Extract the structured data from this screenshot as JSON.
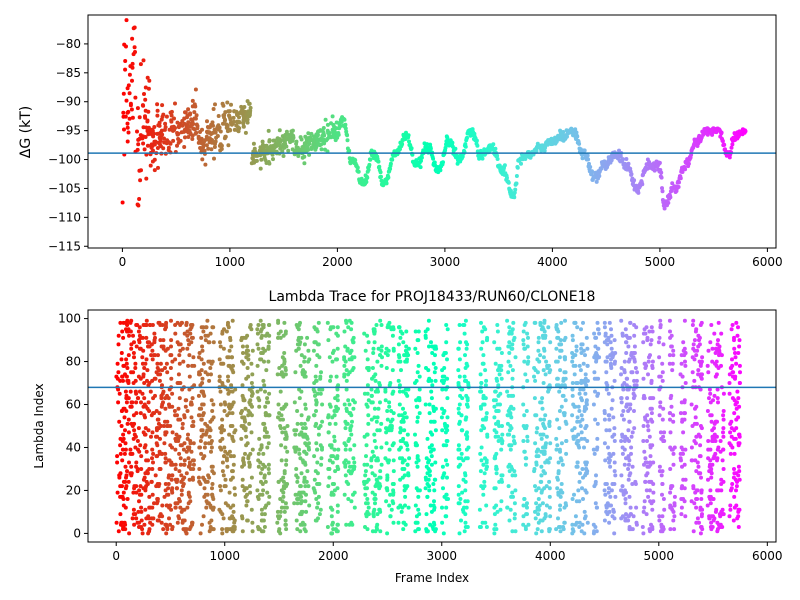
{
  "chart_data": [
    {
      "type": "scatter",
      "title": "",
      "xlabel": "",
      "ylabel": "ΔG (kT)",
      "xlim": [
        -320,
        6080
      ],
      "ylim": [
        -115.3,
        -75
      ],
      "xticks": [
        0,
        1000,
        2000,
        3000,
        4000,
        5000,
        6000
      ],
      "yticks": [
        -80,
        -85,
        -90,
        -95,
        -100,
        -105,
        -110,
        -115
      ],
      "colormap": "rainbow",
      "frame_count": 5800,
      "reference_line": {
        "y": -98.9,
        "color": "#1f77b4"
      },
      "series": [
        {
          "segments": [
            {
              "x": [
                0,
                40
              ],
              "y": [
                -95,
                -82
              ],
              "spread": 13
            },
            {
              "x": [
                40,
                120
              ],
              "y": [
                -92,
                -80
              ],
              "spread": 12
            },
            {
              "x": [
                120,
                260
              ],
              "y": [
                -100,
                -92
              ],
              "spread": 11
            },
            {
              "x": [
                260,
                500
              ],
              "y": [
                -98,
                -94
              ],
              "spread": 5
            },
            {
              "x": [
                500,
                700
              ],
              "y": [
                -95,
                -93
              ],
              "spread": 4
            },
            {
              "x": [
                700,
                1000
              ],
              "y": [
                -97,
                -94
              ],
              "spread": 3.5
            },
            {
              "x": [
                1000,
                1200
              ],
              "y": [
                -94,
                -92
              ],
              "spread": 2.5
            },
            {
              "x": [
                1200,
                1600
              ],
              "y": [
                -100,
                -96
              ],
              "spread": 2
            },
            {
              "x": [
                1600,
                2000
              ],
              "y": [
                -99,
                -95
              ],
              "spread": 2
            }
          ],
          "steps": [
            [
              2000,
              -96
            ],
            [
              2050,
              -93
            ],
            [
              2150,
              -100
            ],
            [
              2250,
              -104
            ],
            [
              2350,
              -99
            ],
            [
              2450,
              -104
            ],
            [
              2550,
              -99
            ],
            [
              2650,
              -96
            ],
            [
              2750,
              -101
            ],
            [
              2850,
              -98
            ],
            [
              2950,
              -102
            ],
            [
              3050,
              -97
            ],
            [
              3150,
              -100
            ],
            [
              3250,
              -95
            ],
            [
              3350,
              -99
            ],
            [
              3450,
              -98
            ],
            [
              3550,
              -102
            ],
            [
              3650,
              -106
            ],
            [
              3700,
              -100
            ],
            [
              3800,
              -99
            ],
            [
              3900,
              -98
            ],
            [
              4000,
              -97
            ],
            [
              4100,
              -96
            ],
            [
              4200,
              -95
            ],
            [
              4300,
              -99
            ],
            [
              4400,
              -103
            ],
            [
              4500,
              -101
            ],
            [
              4600,
              -99
            ],
            [
              4700,
              -101
            ],
            [
              4800,
              -105
            ],
            [
              4900,
              -101
            ],
            [
              5000,
              -101
            ],
            [
              5050,
              -108
            ],
            [
              5150,
              -105
            ],
            [
              5250,
              -101
            ],
            [
              5350,
              -97
            ],
            [
              5450,
              -95
            ],
            [
              5550,
              -95
            ],
            [
              5650,
              -99
            ],
            [
              5700,
              -96
            ],
            [
              5800,
              -95
            ]
          ]
        }
      ]
    },
    {
      "type": "scatter",
      "title": "Lambda Trace for PROJ18433/RUN60/CLONE18",
      "xlabel": "Frame Index",
      "ylabel": "Lambda Index",
      "xlim": [
        -260,
        6080
      ],
      "ylim": [
        -4,
        104
      ],
      "xticks": [
        0,
        1000,
        2000,
        3000,
        4000,
        5000,
        6000
      ],
      "yticks": [
        0,
        20,
        40,
        60,
        80,
        100
      ],
      "colormap": "rainbow",
      "frame_count": 5800,
      "reference_line": {
        "y": 68,
        "color": "#1f77b4"
      },
      "series": [
        {
          "bands": [
            [
              0,
              120
            ],
            [
              130,
              300
            ],
            [
              300,
              520
            ],
            [
              540,
              720
            ],
            [
              760,
              900
            ],
            [
              950,
              1100
            ],
            [
              1150,
              1260
            ],
            [
              1300,
              1420
            ],
            [
              1480,
              1580
            ],
            [
              1640,
              1780
            ],
            [
              1820,
              1900
            ],
            [
              1950,
              2050
            ],
            [
              2100,
              2200
            ],
            [
              2280,
              2330
            ],
            [
              2350,
              2450
            ],
            [
              2480,
              2560
            ],
            [
              2600,
              2700
            ],
            [
              2750,
              2800
            ],
            [
              2850,
              2950
            ],
            [
              3000,
              3060
            ],
            [
              3150,
              3250
            ],
            [
              3350,
              3420
            ],
            [
              3480,
              3560
            ],
            [
              3600,
              3680
            ],
            [
              3750,
              3800
            ],
            [
              3850,
              4000
            ],
            [
              4050,
              4150
            ],
            [
              4200,
              4350
            ],
            [
              4400,
              4450
            ],
            [
              4500,
              4600
            ],
            [
              4650,
              4800
            ],
            [
              4850,
              4950
            ],
            [
              5000,
              5050
            ],
            [
              5100,
              5150
            ],
            [
              5200,
              5250
            ],
            [
              5300,
              5400
            ],
            [
              5450,
              5600
            ],
            [
              5650,
              5750
            ]
          ]
        }
      ]
    }
  ]
}
